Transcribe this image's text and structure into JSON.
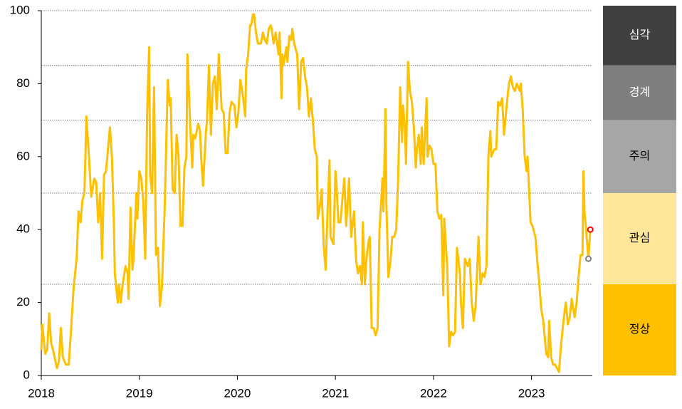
{
  "chart_data": {
    "type": "line",
    "x": [
      2018.0,
      2018.01,
      2018.04,
      2018.06,
      2018.08,
      2018.1,
      2018.12,
      2018.16,
      2018.18,
      2018.2,
      2018.22,
      2018.25,
      2018.28,
      2018.3,
      2018.33,
      2018.36,
      2018.38,
      2018.4,
      2018.42,
      2018.44,
      2018.46,
      2018.49,
      2018.51,
      2018.54,
      2018.56,
      2018.58,
      2018.6,
      2018.62,
      2018.64,
      2018.66,
      2018.68,
      2018.7,
      2018.72,
      2018.74,
      2018.75,
      2018.78,
      2018.79,
      2018.81,
      2018.83,
      2018.86,
      2018.88,
      2018.89,
      2018.91,
      2018.93,
      2018.94,
      2018.97,
      2018.98,
      2019.0,
      2019.02,
      2019.04,
      2019.06,
      2019.08,
      2019.1,
      2019.11,
      2019.13,
      2019.15,
      2019.17,
      2019.19,
      2019.21,
      2019.23,
      2019.26,
      2019.28,
      2019.29,
      2019.31,
      2019.32,
      2019.34,
      2019.36,
      2019.38,
      2019.4,
      2019.42,
      2019.44,
      2019.46,
      2019.48,
      2019.49,
      2019.52,
      2019.54,
      2019.55,
      2019.57,
      2019.6,
      2019.62,
      2019.63,
      2019.65,
      2019.68,
      2019.69,
      2019.71,
      2019.73,
      2019.75,
      2019.77,
      2019.79,
      2019.81,
      2019.84,
      2019.86,
      2019.88,
      2019.9,
      2019.92,
      2019.94,
      2019.97,
      2019.99,
      2020.01,
      2020.03,
      2020.05,
      2020.08,
      2020.09,
      2020.11,
      2020.13,
      2020.14,
      2020.16,
      2020.17,
      2020.19,
      2020.21,
      2020.24,
      2020.26,
      2020.28,
      2020.3,
      2020.32,
      2020.34,
      2020.35,
      2020.37,
      2020.39,
      2020.42,
      2020.43,
      2020.45,
      2020.46,
      2020.47,
      2020.5,
      2020.51,
      2020.53,
      2020.55,
      2020.56,
      2020.58,
      2020.61,
      2020.63,
      2020.65,
      2020.67,
      2020.69,
      2020.71,
      2020.73,
      2020.75,
      2020.77,
      2020.79,
      2020.81,
      2020.82,
      2020.84,
      2020.86,
      2020.88,
      2020.9,
      2020.92,
      2020.94,
      2020.95,
      2020.98,
      2021.0,
      2021.01,
      2021.03,
      2021.05,
      2021.07,
      2021.09,
      2021.11,
      2021.13,
      2021.14,
      2021.16,
      2021.19,
      2021.21,
      2021.23,
      2021.25,
      2021.27,
      2021.28,
      2021.3,
      2021.32,
      2021.34,
      2021.35,
      2021.37,
      2021.39,
      2021.41,
      2021.43,
      2021.45,
      2021.48,
      2021.49,
      2021.51,
      2021.52,
      2021.54,
      2021.56,
      2021.58,
      2021.6,
      2021.62,
      2021.64,
      2021.66,
      2021.68,
      2021.69,
      2021.71,
      2021.72,
      2021.74,
      2021.76,
      2021.78,
      2021.8,
      2021.82,
      2021.83,
      2021.85,
      2021.87,
      2021.88,
      2021.9,
      2021.93,
      2021.94,
      2021.96,
      2021.98,
      2022.0,
      2022.02,
      2022.04,
      2022.06,
      2022.08,
      2022.1,
      2022.11,
      2022.14,
      2022.16,
      2022.18,
      2022.2,
      2022.22,
      2022.24,
      2022.27,
      2022.28,
      2022.3,
      2022.32,
      2022.35,
      2022.37,
      2022.39,
      2022.41,
      2022.43,
      2022.46,
      2022.48,
      2022.5,
      2022.52,
      2022.54,
      2022.56,
      2022.58,
      2022.59,
      2022.62,
      2022.64,
      2022.66,
      2022.68,
      2022.7,
      2022.72,
      2022.75,
      2022.77,
      2022.79,
      2022.81,
      2022.83,
      2022.85,
      2022.88,
      2022.89,
      2022.91,
      2022.93,
      2022.95,
      2022.96,
      2022.98,
      2022.99,
      2023.01,
      2023.04,
      2023.06,
      2023.08,
      2023.1,
      2023.12,
      2023.15,
      2023.17,
      2023.18,
      2023.2,
      2023.22,
      2023.24,
      2023.26,
      2023.28,
      2023.3,
      2023.33,
      2023.35,
      2023.37,
      2023.39,
      2023.41,
      2023.44,
      2023.46,
      2023.48,
      2023.5,
      2023.52,
      2023.53,
      2023.54,
      2023.56,
      2023.58,
      2023.6
    ],
    "values": [
      7,
      14,
      6,
      7,
      17,
      9,
      7,
      2,
      4,
      13,
      5,
      3,
      3,
      11,
      24,
      32,
      45,
      42,
      48,
      50,
      71,
      58,
      49,
      54,
      53,
      42,
      50,
      32,
      55,
      56,
      62,
      68,
      60,
      42,
      28,
      20,
      25,
      20,
      25,
      30,
      28,
      21,
      46,
      29,
      32,
      50,
      43,
      56,
      54,
      48,
      32,
      72,
      90,
      55,
      50,
      79,
      33,
      35,
      19,
      24,
      47,
      70,
      81,
      74,
      76,
      51,
      50,
      66,
      60,
      41,
      41,
      57,
      60,
      88,
      68,
      57,
      66,
      65,
      69,
      67,
      60,
      52,
      67,
      70,
      85,
      66,
      80,
      82,
      73,
      88,
      73,
      72,
      61,
      61,
      72,
      75,
      74,
      68,
      72,
      81,
      78,
      71,
      84,
      88,
      96,
      96,
      99,
      99,
      94,
      91,
      91,
      94,
      92,
      91,
      95,
      96,
      95,
      91,
      94,
      88,
      94,
      76,
      88,
      85,
      90,
      86,
      93,
      92,
      95,
      91,
      88,
      73,
      86,
      87,
      82,
      79,
      71,
      76,
      70,
      62,
      60,
      43,
      46,
      51,
      36,
      29,
      45,
      59,
      38,
      36,
      56,
      53,
      42,
      42,
      48,
      54,
      41,
      50,
      54,
      38,
      45,
      32,
      28,
      30,
      25,
      42,
      25,
      33,
      37,
      38,
      13,
      13,
      11,
      13,
      40,
      54,
      45,
      73,
      47,
      27,
      31,
      38,
      38,
      40,
      54,
      79,
      64,
      74,
      67,
      58,
      86,
      78,
      75,
      68,
      57,
      62,
      66,
      58,
      68,
      58,
      76,
      60,
      63,
      62,
      58,
      58,
      45,
      43,
      44,
      22,
      43,
      30,
      8,
      12,
      11,
      12,
      35,
      28,
      20,
      13,
      32,
      30,
      32,
      20,
      15,
      19,
      38,
      25,
      28,
      27,
      30,
      60,
      67,
      60,
      62,
      62,
      75,
      74,
      76,
      66,
      75,
      80,
      82,
      79,
      78,
      80,
      78,
      80,
      73,
      60,
      56,
      60,
      48,
      42,
      41,
      38,
      31,
      25,
      18,
      15,
      6,
      5,
      15,
      5,
      3,
      3,
      2,
      1,
      8,
      16,
      20,
      14,
      16,
      21,
      16,
      20,
      27,
      33,
      33,
      56,
      45,
      39,
      32,
      40
    ],
    "color": "#ffc000",
    "markers": [
      {
        "x": 2023.58,
        "y": 32,
        "color": "#808080"
      },
      {
        "x": 2023.6,
        "y": 40,
        "color": "#ff0000"
      }
    ],
    "xlim": [
      2018,
      2023.62
    ],
    "xticks": [
      2018,
      2019,
      2020,
      2021,
      2022,
      2023
    ],
    "ylim": [
      0,
      100
    ],
    "yticks": [
      0,
      20,
      40,
      60,
      80,
      100
    ],
    "levels": [
      {
        "name": "심각",
        "from": 85,
        "to": 100,
        "color": "#404040",
        "text_color": "#ffffff"
      },
      {
        "name": "경계",
        "from": 70,
        "to": 85,
        "color": "#7f7f7f",
        "text_color": "#ffffff"
      },
      {
        "name": "주의",
        "from": 50,
        "to": 70,
        "color": "#a6a6a6",
        "text_color": "#000000"
      },
      {
        "name": "관심",
        "from": 25,
        "to": 50,
        "color": "#ffe699",
        "text_color": "#000000"
      },
      {
        "name": "정상",
        "from": 0,
        "to": 25,
        "color": "#ffc000",
        "text_color": "#000000"
      }
    ]
  }
}
